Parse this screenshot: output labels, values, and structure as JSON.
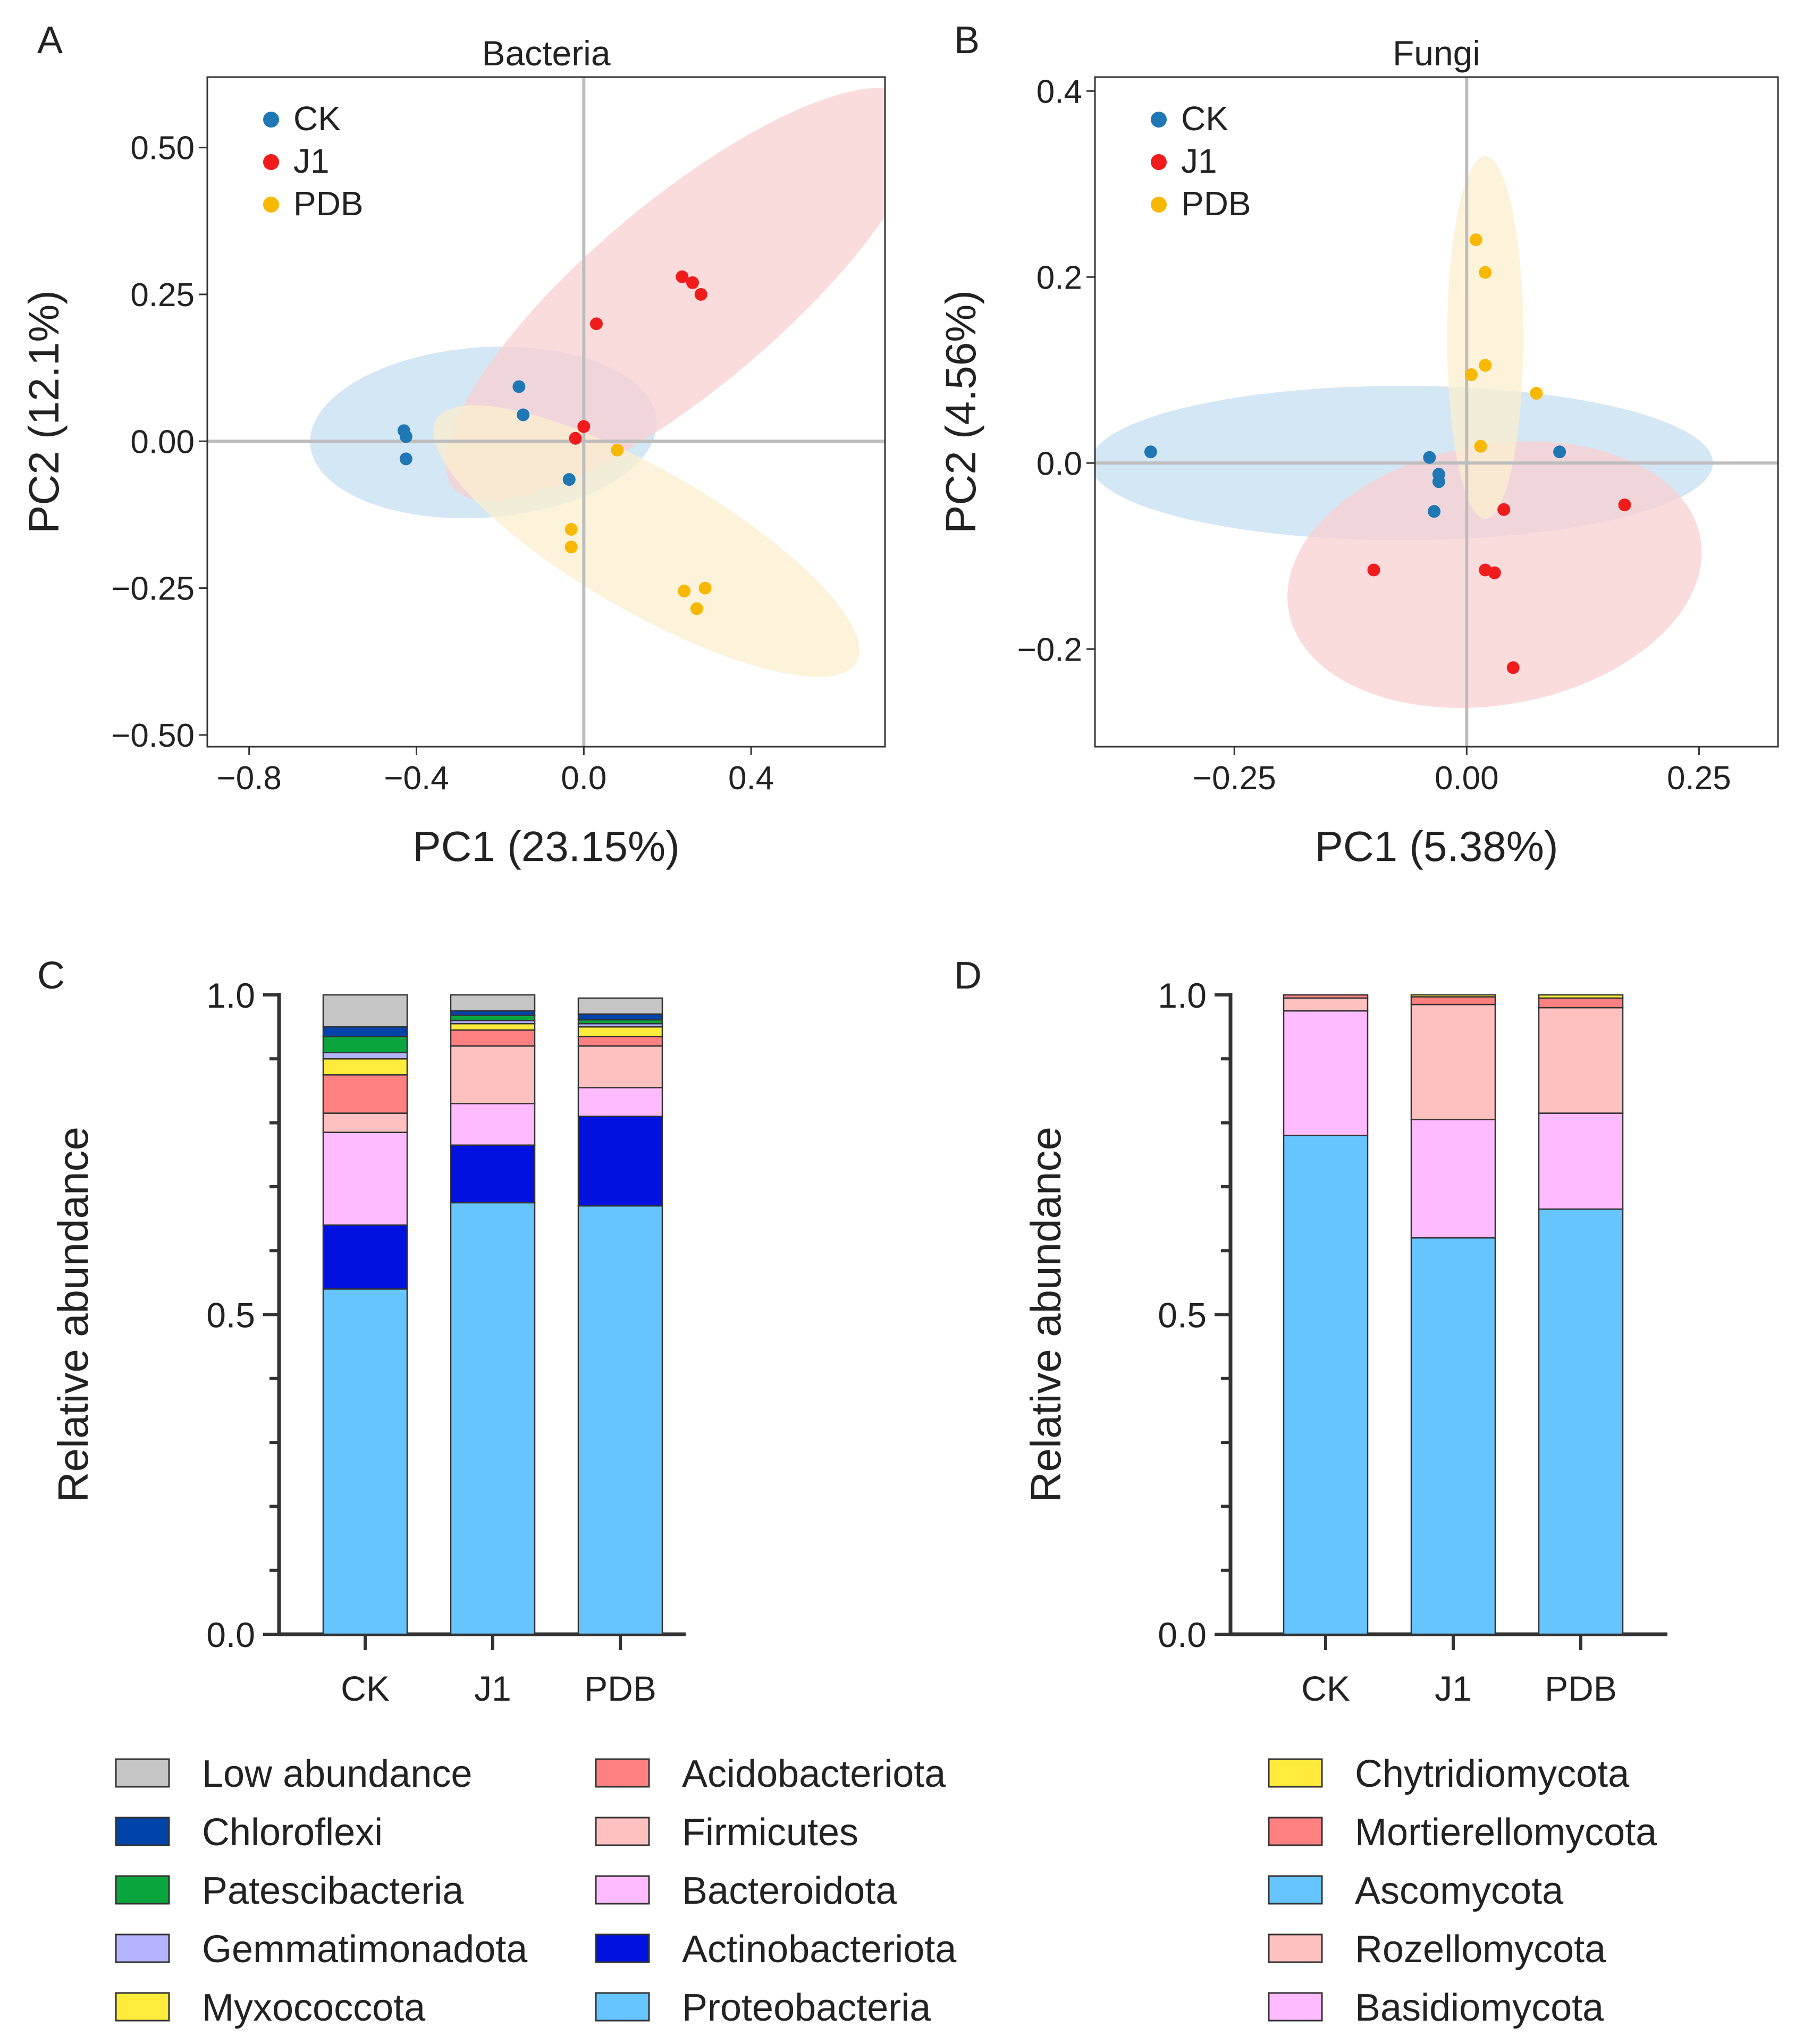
{
  "figure": {
    "panels": {
      "A": "A",
      "B": "B",
      "C": "C",
      "D": "D"
    }
  },
  "colors": {
    "CK": "#1f77b4",
    "J1": "#f01c1c",
    "PDB": "#f9b800",
    "ellipse_CK": "#c6dff2",
    "ellipse_J1": "#f9d0d0",
    "ellipse_PDB": "#fcefcf"
  },
  "chart_data": [
    {
      "id": "A",
      "type": "scatter",
      "title": "Bacteria",
      "xlabel": "PC1 (23.15%)",
      "ylabel": "PC2 (12.1%)",
      "xlim": [
        -0.9,
        0.72
      ],
      "ylim": [
        -0.52,
        0.62
      ],
      "xticks": [
        -0.8,
        -0.4,
        0.0,
        0.4
      ],
      "xtick_labels": [
        "−0.8",
        "−0.4",
        "0.0",
        "0.4"
      ],
      "yticks": [
        -0.5,
        -0.25,
        0.0,
        0.25,
        0.5
      ],
      "ytick_labels": [
        "−0.50",
        "−0.25",
        "0.00",
        "0.25",
        "0.50"
      ],
      "legend": [
        "CK",
        "J1",
        "PDB"
      ],
      "series": [
        {
          "name": "CK",
          "points": [
            [
              -0.43,
              0.018
            ],
            [
              -0.425,
              0.008
            ],
            [
              -0.425,
              -0.03
            ],
            [
              -0.155,
              0.093
            ],
            [
              -0.145,
              0.045
            ],
            [
              -0.035,
              -0.065
            ]
          ]
        },
        {
          "name": "J1",
          "points": [
            [
              0.235,
              0.28
            ],
            [
              0.26,
              0.27
            ],
            [
              0.28,
              0.25
            ],
            [
              0.03,
              0.2
            ],
            [
              0.0,
              0.025
            ],
            [
              -0.02,
              0.005
            ]
          ]
        },
        {
          "name": "PDB",
          "points": [
            [
              0.08,
              -0.015
            ],
            [
              -0.03,
              -0.15
            ],
            [
              -0.03,
              -0.18
            ],
            [
              0.24,
              -0.255
            ],
            [
              0.29,
              -0.25
            ],
            [
              0.27,
              -0.285
            ]
          ]
        }
      ],
      "ellipses": [
        {
          "name": "CK",
          "center": [
            -0.24,
            0.015
          ],
          "rx": 0.415,
          "ry": 0.145,
          "angle": 4
        },
        {
          "name": "J1",
          "center": [
            0.24,
            0.25
          ],
          "rx": 0.72,
          "ry": 0.16,
          "angle": 40
        },
        {
          "name": "PDB",
          "center": [
            0.15,
            -0.17
          ],
          "rx": 0.58,
          "ry": 0.12,
          "angle": -30
        }
      ]
    },
    {
      "id": "B",
      "type": "scatter",
      "title": "Fungi",
      "xlabel": "PC1 (5.38%)",
      "ylabel": "PC2 (4.56%)",
      "xlim": [
        -0.4,
        0.335
      ],
      "ylim": [
        -0.305,
        0.415
      ],
      "xticks": [
        -0.25,
        0.0,
        0.25
      ],
      "xtick_labels": [
        "−0.25",
        "0.00",
        "0.25"
      ],
      "yticks": [
        -0.2,
        0.0,
        0.2,
        0.4
      ],
      "ytick_labels": [
        "−0.2",
        "0.0",
        "0.2",
        "0.4"
      ],
      "legend": [
        "CK",
        "J1",
        "PDB"
      ],
      "series": [
        {
          "name": "CK",
          "points": [
            [
              -0.34,
              0.012
            ],
            [
              -0.04,
              0.006
            ],
            [
              -0.03,
              -0.012
            ],
            [
              -0.03,
              -0.02
            ],
            [
              -0.035,
              -0.052
            ],
            [
              0.1,
              0.012
            ]
          ]
        },
        {
          "name": "J1",
          "points": [
            [
              -0.1,
              -0.115
            ],
            [
              0.04,
              -0.05
            ],
            [
              0.02,
              -0.115
            ],
            [
              0.03,
              -0.118
            ],
            [
              0.05,
              -0.22
            ],
            [
              0.17,
              -0.045
            ]
          ]
        },
        {
          "name": "PDB",
          "points": [
            [
              0.01,
              0.24
            ],
            [
              0.02,
              0.205
            ],
            [
              0.02,
              0.105
            ],
            [
              0.005,
              0.095
            ],
            [
              0.075,
              0.075
            ],
            [
              0.015,
              0.018
            ]
          ]
        }
      ],
      "ellipses": [
        {
          "name": "CK",
          "center": [
            -0.07,
            0.0
          ],
          "rx": 0.335,
          "ry": 0.083,
          "angle": 0
        },
        {
          "name": "J1",
          "center": [
            0.03,
            -0.12
          ],
          "rx": 0.225,
          "ry": 0.14,
          "angle": 10
        },
        {
          "name": "PDB",
          "center": [
            0.02,
            0.135
          ],
          "rx": 0.041,
          "ry": 0.195,
          "angle": 0
        }
      ]
    },
    {
      "id": "C",
      "type": "bar",
      "stacked": true,
      "ylabel": "Relative abundance",
      "ylim": [
        0,
        1.0
      ],
      "yticks": [
        0.0,
        0.5,
        1.0
      ],
      "ytick_labels": [
        "0.0",
        "0.5",
        "1.0"
      ],
      "categories": [
        "CK",
        "J1",
        "PDB"
      ],
      "series": [
        {
          "name": "Proteobacteria",
          "color": "#66c4ff",
          "values": [
            0.54,
            0.675,
            0.67
          ]
        },
        {
          "name": "Actinobacteriota",
          "color": "#0011e0",
          "values": [
            0.1,
            0.09,
            0.14
          ]
        },
        {
          "name": "Bacteroidota",
          "color": "#ffbbff",
          "values": [
            0.145,
            0.065,
            0.045
          ]
        },
        {
          "name": "Firmicutes",
          "color": "#ffc0c0",
          "values": [
            0.03,
            0.09,
            0.065
          ]
        },
        {
          "name": "Acidobacteriota",
          "color": "#ff8080",
          "values": [
            0.06,
            0.025,
            0.015
          ]
        },
        {
          "name": "Myxococcota",
          "color": "#ffeb3b",
          "values": [
            0.025,
            0.01,
            0.015
          ]
        },
        {
          "name": "Gemmatimonadota",
          "color": "#b4b4ff",
          "values": [
            0.01,
            0.005,
            0.005
          ]
        },
        {
          "name": "Patescibacteria",
          "color": "#0ba53e",
          "values": [
            0.025,
            0.008,
            0.006
          ]
        },
        {
          "name": "Chloroflexi",
          "color": "#0044aa",
          "values": [
            0.015,
            0.007,
            0.009
          ]
        },
        {
          "name": "Low abundance",
          "color": "#c6c6c6",
          "values": [
            0.05,
            0.025,
            0.025
          ]
        }
      ],
      "legend_columns": [
        [
          "Low abundance",
          "Chloroflexi",
          "Patescibacteria",
          "Gemmatimonadota",
          "Myxococcota"
        ],
        [
          "Acidobacteriota",
          "Firmicutes",
          "Bacteroidota",
          "Actinobacteriota",
          "Proteobacteria"
        ]
      ]
    },
    {
      "id": "D",
      "type": "bar",
      "stacked": true,
      "ylabel": "Relative abundance",
      "ylim": [
        0,
        1.0
      ],
      "yticks": [
        0.0,
        0.5,
        1.0
      ],
      "ytick_labels": [
        "0.0",
        "0.5",
        "1.0"
      ],
      "categories": [
        "CK",
        "J1",
        "PDB"
      ],
      "series": [
        {
          "name": "Ascomycota",
          "color": "#66c4ff",
          "values": [
            0.78,
            0.62,
            0.665
          ]
        },
        {
          "name": "Basidiomycota",
          "color": "#ffbbff",
          "values": [
            0.195,
            0.185,
            0.15
          ]
        },
        {
          "name": "Rozellomycota",
          "color": "#ffc0c0",
          "values": [
            0.02,
            0.18,
            0.165
          ]
        },
        {
          "name": "Mortierellomycota",
          "color": "#ff8080",
          "values": [
            0.005,
            0.012,
            0.015
          ]
        },
        {
          "name": "Chytridiomycota",
          "color": "#ffeb3b",
          "values": [
            0.0,
            0.003,
            0.005
          ]
        }
      ],
      "legend_columns": [
        [
          "Chytridiomycota",
          "Mortierellomycota",
          "Ascomycota",
          "Rozellomycota",
          "Basidiomycota"
        ]
      ]
    }
  ]
}
